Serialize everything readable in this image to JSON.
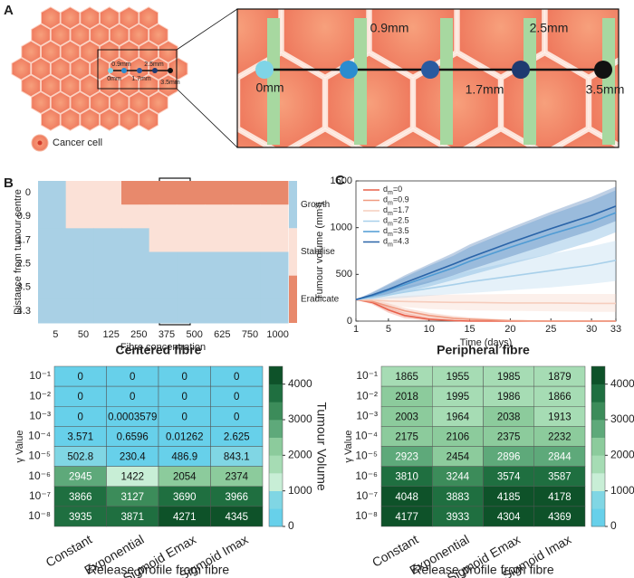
{
  "panel_labels": [
    "A",
    "B",
    "C"
  ],
  "diagram": {
    "distances": [
      "0mm",
      "0.9mm",
      "1.7mm",
      "2.5mm",
      "3.5mm"
    ],
    "legend": "Cancer cell"
  },
  "chart_data": [
    {
      "type": "heatmap",
      "xlabel": "Fibre concentration",
      "ylabel": "Distance from tumour centre",
      "categories": [
        5,
        50,
        125,
        250,
        375,
        500,
        625,
        750,
        1000
      ],
      "rows": [
        0,
        0.9,
        1.7,
        2.5,
        3.5,
        4.3
      ],
      "outcomes": [
        "Growth",
        "Stabilise",
        "Eradicate"
      ],
      "outcome_colors": [
        "#a9d0e5",
        "#fbe1d7",
        "#e8896c"
      ],
      "values": [
        [
          "Growth",
          "Stabilise",
          "Stabilise",
          "Eradicate",
          "Eradicate",
          "Eradicate",
          "Eradicate",
          "Eradicate",
          "Eradicate"
        ],
        [
          "Growth",
          "Stabilise",
          "Stabilise",
          "Stabilise",
          "Stabilise",
          "Stabilise",
          "Stabilise",
          "Stabilise",
          "Stabilise"
        ],
        [
          "Growth",
          "Growth",
          "Growth",
          "Growth",
          "Stabilise",
          "Stabilise",
          "Stabilise",
          "Stabilise",
          "Stabilise"
        ],
        [
          "Growth",
          "Growth",
          "Growth",
          "Growth",
          "Growth",
          "Growth",
          "Growth",
          "Growth",
          "Growth"
        ],
        [
          "Growth",
          "Growth",
          "Growth",
          "Growth",
          "Growth",
          "Growth",
          "Growth",
          "Growth",
          "Growth"
        ],
        [
          "Growth",
          "Growth",
          "Growth",
          "Growth",
          "Growth",
          "Growth",
          "Growth",
          "Growth",
          "Growth"
        ]
      ]
    },
    {
      "type": "line",
      "xlabel": "Time (days)",
      "ylabel": "Tumour volume (mm³)",
      "x": [
        1,
        3,
        5,
        7,
        10,
        13,
        15,
        20,
        25,
        30,
        33
      ],
      "xlim": [
        1,
        33
      ],
      "xticks": [
        1,
        5,
        10,
        15,
        20,
        25,
        30,
        33
      ],
      "ylim": [
        0,
        1500
      ],
      "yticks": [
        0,
        500,
        1000,
        1500
      ],
      "series": [
        {
          "name": "dm=0",
          "color": "#e8604a",
          "values": [
            230,
            200,
            120,
            60,
            20,
            5,
            0,
            0,
            0,
            0,
            0
          ],
          "lower": [
            230,
            180,
            90,
            30,
            5,
            0,
            0,
            0,
            0,
            0,
            0
          ],
          "upper": [
            230,
            220,
            150,
            90,
            40,
            15,
            5,
            0,
            0,
            0,
            0
          ]
        },
        {
          "name": "dm=0.9",
          "color": "#f09a80",
          "values": [
            230,
            210,
            160,
            110,
            60,
            30,
            20,
            5,
            0,
            0,
            0
          ],
          "lower": [
            230,
            190,
            130,
            80,
            35,
            10,
            5,
            0,
            0,
            0,
            0
          ],
          "upper": [
            230,
            230,
            190,
            140,
            90,
            55,
            40,
            15,
            5,
            0,
            0
          ]
        },
        {
          "name": "dm=1.7",
          "color": "#f6cdbd",
          "values": [
            230,
            225,
            215,
            210,
            205,
            200,
            200,
            195,
            195,
            190,
            190
          ],
          "lower": [
            230,
            200,
            170,
            150,
            130,
            120,
            115,
            110,
            105,
            100,
            100
          ],
          "upper": [
            230,
            250,
            260,
            270,
            280,
            285,
            285,
            290,
            290,
            290,
            290
          ]
        },
        {
          "name": "dm=2.5",
          "color": "#a8d0ea",
          "values": [
            230,
            250,
            280,
            310,
            350,
            390,
            420,
            480,
            540,
            600,
            650
          ],
          "lower": [
            230,
            230,
            240,
            250,
            270,
            290,
            300,
            330,
            360,
            400,
            430
          ],
          "upper": [
            230,
            270,
            320,
            370,
            430,
            490,
            540,
            630,
            720,
            800,
            860
          ]
        },
        {
          "name": "dm=3.5",
          "color": "#4f9bd4",
          "values": [
            230,
            270,
            330,
            390,
            480,
            570,
            640,
            790,
            930,
            1060,
            1160
          ],
          "lower": [
            230,
            240,
            270,
            310,
            370,
            440,
            490,
            610,
            720,
            850,
            950
          ],
          "upper": [
            230,
            300,
            390,
            470,
            590,
            700,
            790,
            970,
            1140,
            1290,
            1400
          ]
        },
        {
          "name": "dm=4.3",
          "color": "#2a64a8",
          "values": [
            230,
            280,
            340,
            410,
            510,
            610,
            680,
            840,
            990,
            1130,
            1230
          ],
          "lower": [
            230,
            250,
            290,
            340,
            410,
            490,
            550,
            690,
            830,
            970,
            1070
          ],
          "upper": [
            230,
            310,
            400,
            490,
            610,
            730,
            820,
            1000,
            1170,
            1330,
            1440
          ]
        }
      ]
    },
    {
      "type": "heatmap",
      "title": "Centered fibre",
      "xlabel": "Release profile from fibre",
      "ylabel": "γ Value",
      "colorbar_label": "Tumour Volume",
      "categories": [
        "Constant",
        "Exponential",
        "Sigmoid Emax",
        "Sigmoid Imax"
      ],
      "rows": [
        "10⁻¹",
        "10⁻²",
        "10⁻³",
        "10⁻⁴",
        "10⁻⁵",
        "10⁻⁶",
        "10⁻⁷",
        "10⁻⁸"
      ],
      "clim": [
        0,
        4500
      ],
      "cticks": [
        0,
        1000,
        2000,
        3000,
        4000
      ],
      "colors": [
        "#67d0ea",
        "#80d6e4",
        "#c8eed6",
        "#a6dcb4",
        "#8ccb9c",
        "#5ea97a",
        "#3c8c5a",
        "#1f6f40",
        "#0e5229"
      ],
      "values": [
        [
          0,
          0,
          0,
          0
        ],
        [
          0,
          0,
          0,
          0
        ],
        [
          0,
          0.0003579,
          0,
          0
        ],
        [
          3.571,
          0.6596,
          0.01262,
          2.625
        ],
        [
          502.8,
          230.4,
          486.9,
          843.1
        ],
        [
          2945,
          1422,
          2054,
          2374
        ],
        [
          3866,
          3127,
          3690,
          3966
        ],
        [
          3935,
          3871,
          4271,
          4345
        ]
      ]
    },
    {
      "type": "heatmap",
      "title": "Peripheral fibre",
      "xlabel": "Release profile from fibre",
      "ylabel": "γ Value",
      "colorbar_label": "Tumour Volume",
      "categories": [
        "Constant",
        "Exponential",
        "Sigmoid Emax",
        "Sigmoid Imax"
      ],
      "rows": [
        "10⁻¹",
        "10⁻²",
        "10⁻³",
        "10⁻⁴",
        "10⁻⁵",
        "10⁻⁶",
        "10⁻⁷",
        "10⁻⁸"
      ],
      "clim": [
        0,
        4500
      ],
      "cticks": [
        0,
        1000,
        2000,
        3000,
        4000
      ],
      "colors": [
        "#67d0ea",
        "#80d6e4",
        "#c8eed6",
        "#a6dcb4",
        "#8ccb9c",
        "#5ea97a",
        "#3c8c5a",
        "#1f6f40",
        "#0e5229"
      ],
      "values": [
        [
          1865,
          1955,
          1985,
          1879
        ],
        [
          2018,
          1995,
          1986,
          1866
        ],
        [
          2003,
          1964,
          2038,
          1913
        ],
        [
          2175,
          2106,
          2375,
          2232
        ],
        [
          2923,
          2454,
          2896,
          2844
        ],
        [
          3810,
          3244,
          3574,
          3587
        ],
        [
          4048,
          3883,
          4185,
          4178
        ],
        [
          4177,
          3933,
          4304,
          4369
        ]
      ]
    }
  ]
}
